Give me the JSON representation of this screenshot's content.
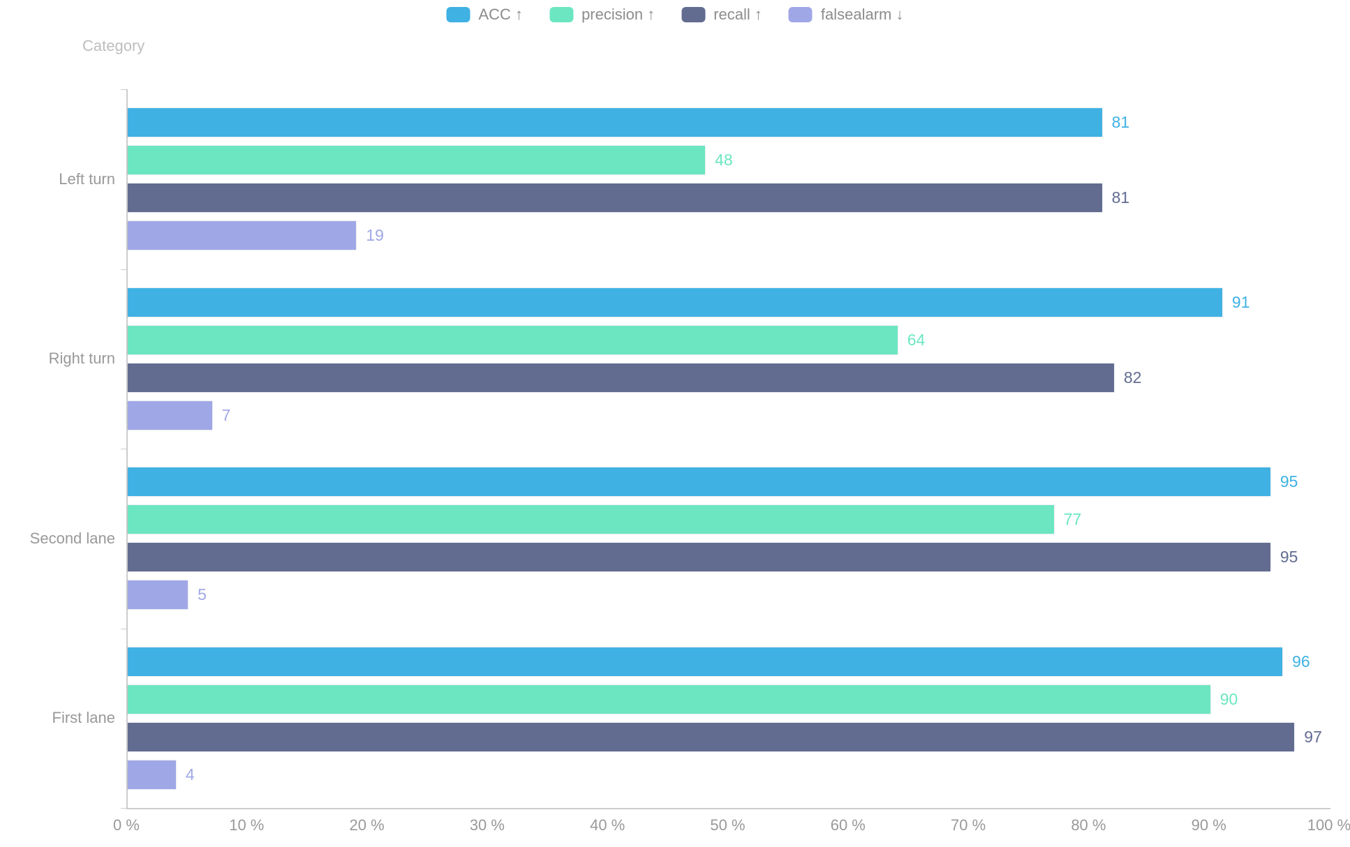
{
  "page": {
    "background": "#ffffff"
  },
  "legend": {
    "position": "top-center",
    "items": [
      {
        "label": "ACC ↑",
        "color": "#3fb1e3"
      },
      {
        "label": "precision ↑",
        "color": "#6be6c1"
      },
      {
        "label": "recall ↑",
        "color": "#626c91"
      },
      {
        "label": "falsealarm ↓",
        "color": "#a0a7e6"
      }
    ]
  },
  "chart_data": {
    "type": "bar",
    "orientation": "horizontal",
    "axis_title": "Category",
    "categories": [
      "Left turn",
      "Right turn",
      "Second lane",
      "First lane"
    ],
    "category_display_order": "top-to-bottom",
    "series": [
      {
        "name": "ACC ↑",
        "color": "#3fb1e3",
        "values": [
          81,
          91,
          95,
          96
        ]
      },
      {
        "name": "precision ↑",
        "color": "#6be6c1",
        "values": [
          48,
          64,
          77,
          90
        ]
      },
      {
        "name": "recall ↑",
        "color": "#626c91",
        "values": [
          81,
          82,
          95,
          97
        ]
      },
      {
        "name": "falsealarm ↓",
        "color": "#a0a7e6",
        "values": [
          19,
          7,
          5,
          4
        ]
      }
    ],
    "value_labels": true,
    "xlim": [
      0,
      100
    ],
    "x_tick_labels": [
      "0 %",
      "10 %",
      "20 %",
      "30 %",
      "40 %",
      "50 %",
      "60 %",
      "70 %",
      "80 %",
      "90 %",
      "100 %"
    ],
    "grid": false,
    "legend_position": "top"
  },
  "style": {
    "axis_line_color": "#cccccc",
    "tick_label_color": "#999999",
    "category_label_color": "#999999",
    "axis_title_color": "#bdbdbd",
    "legend_text_color": "#8c8c8c"
  }
}
